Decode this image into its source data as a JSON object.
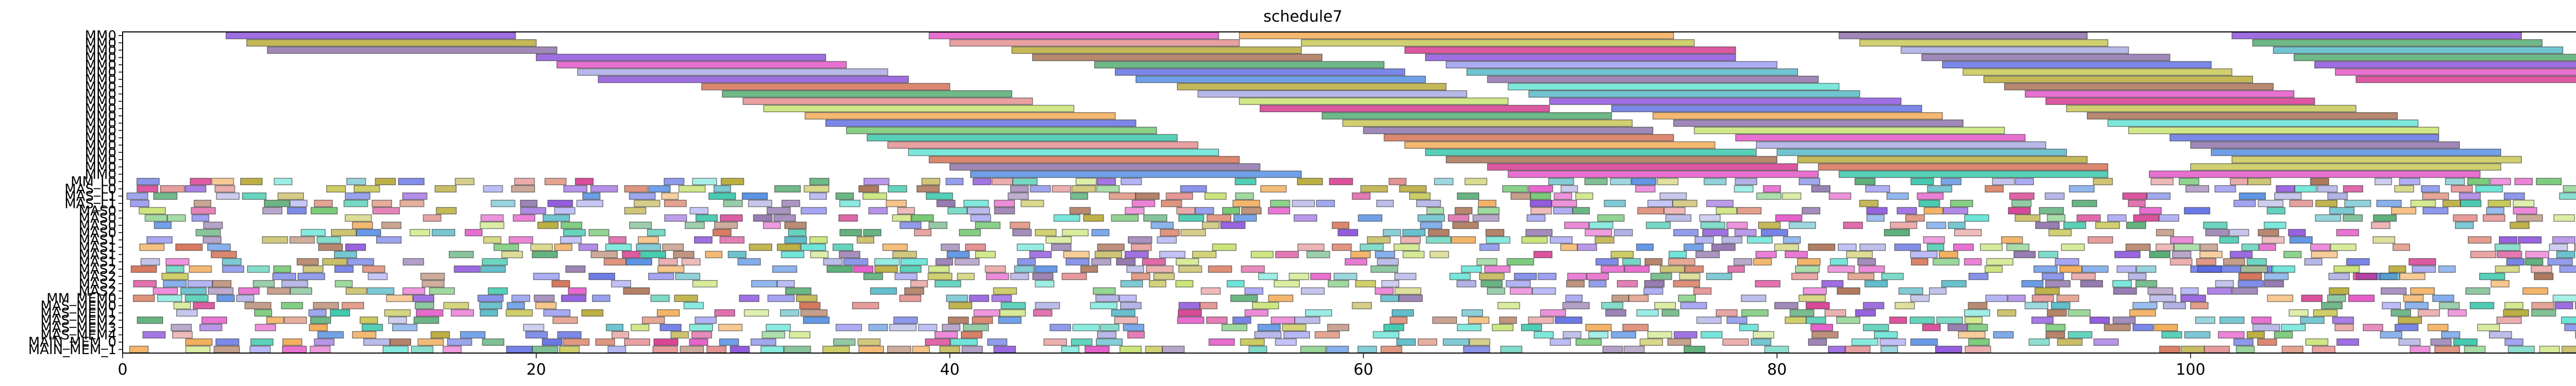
{
  "chart_data": {
    "type": "gantt",
    "title": "schedule7",
    "xlabel": "",
    "ylabel": "",
    "xlim": [
      0,
      122
    ],
    "xticks": [
      0,
      20,
      40,
      60,
      80,
      100,
      120
    ],
    "grid": false,
    "rows": [
      "MM0",
      "MM0",
      "MM0",
      "MM0",
      "MM0",
      "MM0",
      "MM0",
      "MM0",
      "MM0",
      "MM0",
      "MM0",
      "MM0",
      "MM0",
      "MM0",
      "MM0",
      "MM0",
      "MM0",
      "MM0",
      "MM0",
      "MM0",
      "MM_L0",
      "MAS_L0",
      "MAS_L1",
      "MAS_L1",
      "MAS0",
      "MAS0",
      "MAS0",
      "MAS0",
      "MAS1",
      "MAS1",
      "MAS1",
      "MAS1",
      "MAS2",
      "MAS2",
      "MAS2",
      "MAS2",
      "MM_MEM0",
      "MAS_MEM0",
      "MAS_MEM1",
      "MAS_MEM2",
      "MAS_MEM3",
      "MAS_MEM4",
      "MAIN_MEM_0",
      "MAIN_MEM_1"
    ],
    "palette": [
      "#7f3fd8",
      "#b0a020",
      "#e040c0",
      "#3fa060",
      "#5060e0",
      "#d06040",
      "#40b0c0",
      "#c0c040",
      "#8060a0",
      "#e08080",
      "#60c060",
      "#4080e0",
      "#a0a0e0",
      "#f0a040",
      "#20c0a0",
      "#d02080",
      "#a06040",
      "#c0e060",
      "#9090f0",
      "#50e0d0"
    ],
    "bars": [
      {
        "row": 0,
        "start": 5.0,
        "end": 19.0,
        "c": 0
      },
      {
        "row": 0,
        "start": 39.0,
        "end": 53.0,
        "c": 2
      },
      {
        "row": 0,
        "start": 54.0,
        "end": 75.0,
        "c": 13
      },
      {
        "row": 0,
        "start": 83.0,
        "end": 95.0,
        "c": 8
      },
      {
        "row": 0,
        "start": 102.0,
        "end": 116.0,
        "c": 0
      },
      {
        "row": 1,
        "start": 6.0,
        "end": 20.0,
        "c": 1
      },
      {
        "row": 1,
        "start": 40.0,
        "end": 54.0,
        "c": 9
      },
      {
        "row": 1,
        "start": 57.0,
        "end": 76.0,
        "c": 7
      },
      {
        "row": 1,
        "start": 84.0,
        "end": 96.0,
        "c": 7
      },
      {
        "row": 1,
        "start": 103.0,
        "end": 117.0,
        "c": 3
      },
      {
        "row": 2,
        "start": 7.0,
        "end": 21.0,
        "c": 8
      },
      {
        "row": 2,
        "start": 43.0,
        "end": 57.0,
        "c": 1
      },
      {
        "row": 2,
        "start": 62.0,
        "end": 78.0,
        "c": 15
      },
      {
        "row": 2,
        "start": 86.0,
        "end": 97.0,
        "c": 12
      },
      {
        "row": 2,
        "start": 104.0,
        "end": 118.0,
        "c": 6
      },
      {
        "row": 3,
        "start": 20.0,
        "end": 34.0,
        "c": 0
      },
      {
        "row": 3,
        "start": 44.0,
        "end": 58.0,
        "c": 16
      },
      {
        "row": 3,
        "start": 63.0,
        "end": 78.0,
        "c": 0
      },
      {
        "row": 3,
        "start": 87.0,
        "end": 99.0,
        "c": 8
      },
      {
        "row": 3,
        "start": 105.0,
        "end": 119.0,
        "c": 3
      },
      {
        "row": 4,
        "start": 21.0,
        "end": 35.0,
        "c": 2
      },
      {
        "row": 4,
        "start": 47.0,
        "end": 61.0,
        "c": 3
      },
      {
        "row": 4,
        "start": 64.0,
        "end": 80.0,
        "c": 18
      },
      {
        "row": 4,
        "start": 88.0,
        "end": 101.0,
        "c": 4
      },
      {
        "row": 4,
        "start": 106.0,
        "end": 120.0,
        "c": 0
      },
      {
        "row": 5,
        "start": 22.0,
        "end": 37.0,
        "c": 12
      },
      {
        "row": 5,
        "start": 48.0,
        "end": 62.0,
        "c": 4
      },
      {
        "row": 5,
        "start": 65.0,
        "end": 81.0,
        "c": 6
      },
      {
        "row": 5,
        "start": 89.0,
        "end": 102.0,
        "c": 7
      },
      {
        "row": 5,
        "start": 107.0,
        "end": 121.0,
        "c": 2
      },
      {
        "row": 6,
        "start": 23.0,
        "end": 38.0,
        "c": 0
      },
      {
        "row": 6,
        "start": 49.0,
        "end": 63.0,
        "c": 11
      },
      {
        "row": 6,
        "start": 66.0,
        "end": 82.0,
        "c": 8
      },
      {
        "row": 6,
        "start": 90.0,
        "end": 103.0,
        "c": 1
      },
      {
        "row": 6,
        "start": 108.0,
        "end": 122.0,
        "c": 15
      },
      {
        "row": 7,
        "start": 28.0,
        "end": 40.0,
        "c": 5
      },
      {
        "row": 7,
        "start": 51.0,
        "end": 64.0,
        "c": 1
      },
      {
        "row": 7,
        "start": 67.0,
        "end": 83.0,
        "c": 19
      },
      {
        "row": 7,
        "start": 91.0,
        "end": 104.0,
        "c": 16
      },
      {
        "row": 8,
        "start": 29.0,
        "end": 43.0,
        "c": 3
      },
      {
        "row": 8,
        "start": 52.0,
        "end": 65.0,
        "c": 12
      },
      {
        "row": 8,
        "start": 68.0,
        "end": 84.0,
        "c": 6
      },
      {
        "row": 8,
        "start": 92.0,
        "end": 105.0,
        "c": 2
      },
      {
        "row": 9,
        "start": 30.0,
        "end": 44.0,
        "c": 9
      },
      {
        "row": 9,
        "start": 54.0,
        "end": 67.0,
        "c": 17
      },
      {
        "row": 9,
        "start": 69.0,
        "end": 86.0,
        "c": 0
      },
      {
        "row": 9,
        "start": 93.0,
        "end": 106.0,
        "c": 15
      },
      {
        "row": 10,
        "start": 31.0,
        "end": 46.0,
        "c": 17
      },
      {
        "row": 10,
        "start": 55.0,
        "end": 69.0,
        "c": 15
      },
      {
        "row": 10,
        "start": 72.0,
        "end": 87.0,
        "c": 4
      },
      {
        "row": 10,
        "start": 94.0,
        "end": 108.0,
        "c": 7
      },
      {
        "row": 11,
        "start": 33.0,
        "end": 48.0,
        "c": 13
      },
      {
        "row": 11,
        "start": 58.0,
        "end": 72.0,
        "c": 3
      },
      {
        "row": 11,
        "start": 74.0,
        "end": 88.0,
        "c": 13
      },
      {
        "row": 11,
        "start": 95.0,
        "end": 110.0,
        "c": 16
      },
      {
        "row": 12,
        "start": 34.0,
        "end": 49.0,
        "c": 4
      },
      {
        "row": 12,
        "start": 59.0,
        "end": 73.0,
        "c": 7
      },
      {
        "row": 12,
        "start": 75.0,
        "end": 89.0,
        "c": 8
      },
      {
        "row": 12,
        "start": 96.0,
        "end": 111.0,
        "c": 19
      },
      {
        "row": 13,
        "start": 35.0,
        "end": 50.0,
        "c": 10
      },
      {
        "row": 13,
        "start": 60.0,
        "end": 74.0,
        "c": 8
      },
      {
        "row": 13,
        "start": 76.0,
        "end": 91.0,
        "c": 17
      },
      {
        "row": 13,
        "start": 97.0,
        "end": 112.0,
        "c": 17
      },
      {
        "row": 14,
        "start": 36.0,
        "end": 51.0,
        "c": 14
      },
      {
        "row": 14,
        "start": 61.0,
        "end": 75.0,
        "c": 5
      },
      {
        "row": 14,
        "start": 78.0,
        "end": 92.0,
        "c": 2
      },
      {
        "row": 14,
        "start": 99.0,
        "end": 112.0,
        "c": 4
      },
      {
        "row": 15,
        "start": 37.0,
        "end": 52.0,
        "c": 9
      },
      {
        "row": 15,
        "start": 62.0,
        "end": 77.0,
        "c": 13
      },
      {
        "row": 15,
        "start": 79.0,
        "end": 93.0,
        "c": 12
      },
      {
        "row": 15,
        "start": 100.0,
        "end": 113.0,
        "c": 8
      },
      {
        "row": 16,
        "start": 38.0,
        "end": 53.0,
        "c": 19
      },
      {
        "row": 16,
        "start": 63.0,
        "end": 79.0,
        "c": 14
      },
      {
        "row": 16,
        "start": 80.0,
        "end": 94.0,
        "c": 6
      },
      {
        "row": 16,
        "start": 101.0,
        "end": 115.0,
        "c": 11
      },
      {
        "row": 17,
        "start": 39.0,
        "end": 54.0,
        "c": 5
      },
      {
        "row": 17,
        "start": 64.0,
        "end": 80.0,
        "c": 16
      },
      {
        "row": 17,
        "start": 81.0,
        "end": 95.0,
        "c": 1
      },
      {
        "row": 17,
        "start": 102.0,
        "end": 116.0,
        "c": 7
      },
      {
        "row": 18,
        "start": 40.0,
        "end": 55.0,
        "c": 8
      },
      {
        "row": 18,
        "start": 66.0,
        "end": 81.0,
        "c": 15
      },
      {
        "row": 18,
        "start": 82.0,
        "end": 96.0,
        "c": 5
      },
      {
        "row": 18,
        "start": 100.0,
        "end": 115.0,
        "c": 7
      },
      {
        "row": 19,
        "start": 41.0,
        "end": 57.0,
        "c": 11
      },
      {
        "row": 19,
        "start": 67.0,
        "end": 82.0,
        "c": 2
      },
      {
        "row": 19,
        "start": 83.0,
        "end": 96.0,
        "c": 14
      },
      {
        "row": 19,
        "start": 98.0,
        "end": 114.0,
        "c": 2
      },
      {
        "row": 32,
        "start": 100.0,
        "end": 104.0,
        "c": 4
      },
      {
        "row": 33,
        "start": 108.0,
        "end": 110.0,
        "c": 4
      }
    ],
    "short_tasks": {
      "rows_from": 20,
      "rows_to": 43,
      "density": 0.55,
      "min_len": 0.8,
      "max_len": 1.3
    },
    "note_short_tasks": ""
  }
}
